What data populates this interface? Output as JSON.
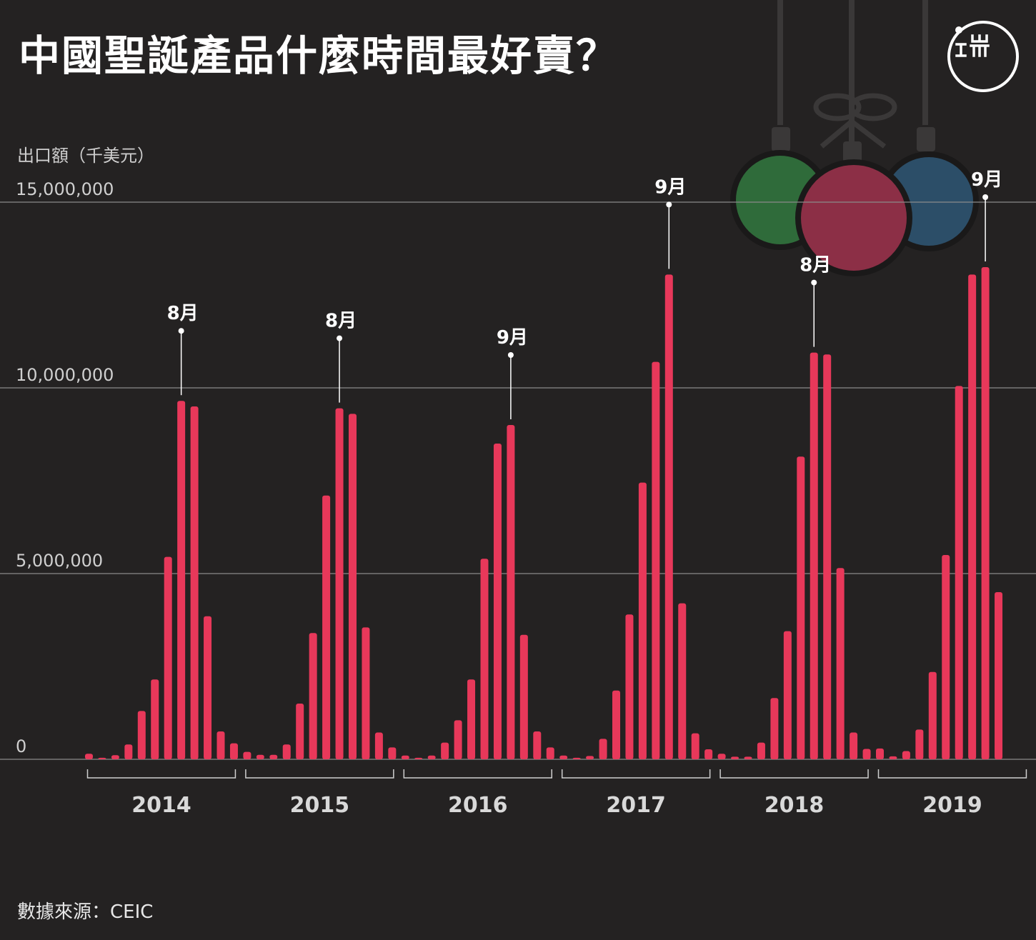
{
  "title": "中國聖誕產品什麼時間最好賣？",
  "source": "數據來源：CEIC",
  "logo": {
    "icon": "initium-media-logo"
  },
  "colors": {
    "background": "#242222",
    "bar": "#e8385a",
    "grid": "#8a8a8a",
    "text": "#ffffff",
    "ornament_green": "#2f6b3a",
    "ornament_red": "#8c2f46",
    "ornament_blue": "#2c4e68"
  },
  "chart_data": {
    "type": "bar",
    "ylabel": "出口額（千美元）",
    "xlabel": "",
    "ylim": [
      0,
      15000000
    ],
    "yticks": [
      0,
      5000000,
      10000000,
      15000000
    ],
    "ytick_labels": [
      "0",
      "5,000,000",
      "10,000,000",
      "15,000,000"
    ],
    "grid": true,
    "years": [
      {
        "label": "2014",
        "values": [
          150000,
          40000,
          110000,
          400000,
          1300000,
          2150000,
          5450000,
          9650000,
          9500000,
          3850000,
          750000,
          430000
        ]
      },
      {
        "label": "2015",
        "values": [
          200000,
          120000,
          120000,
          400000,
          1500000,
          3400000,
          7100000,
          9450000,
          9300000,
          3550000,
          720000,
          320000
        ]
      },
      {
        "label": "2016",
        "values": [
          100000,
          40000,
          100000,
          450000,
          1050000,
          2150000,
          5400000,
          8500000,
          9000000,
          3350000,
          750000,
          320000
        ]
      },
      {
        "label": "2017",
        "values": [
          100000,
          40000,
          90000,
          550000,
          1850000,
          3900000,
          7450000,
          10700000,
          13050000,
          4200000,
          700000,
          270000
        ]
      },
      {
        "label": "2018",
        "values": [
          150000,
          70000,
          70000,
          450000,
          1650000,
          3450000,
          8150000,
          10950000,
          10900000,
          5150000,
          720000,
          280000
        ]
      },
      {
        "label": "2019",
        "values": [
          290000,
          80000,
          220000,
          800000,
          2350000,
          5500000,
          10050000,
          13050000,
          13250000,
          4500000
        ]
      }
    ],
    "annotations": [
      {
        "year_index": 0,
        "month_index": 7,
        "label": "8月"
      },
      {
        "year_index": 1,
        "month_index": 7,
        "label": "8月"
      },
      {
        "year_index": 2,
        "month_index": 8,
        "label": "9月"
      },
      {
        "year_index": 3,
        "month_index": 8,
        "label": "9月"
      },
      {
        "year_index": 4,
        "month_index": 7,
        "label": "8月"
      },
      {
        "year_index": 5,
        "month_index": 8,
        "label": "9月"
      }
    ]
  }
}
